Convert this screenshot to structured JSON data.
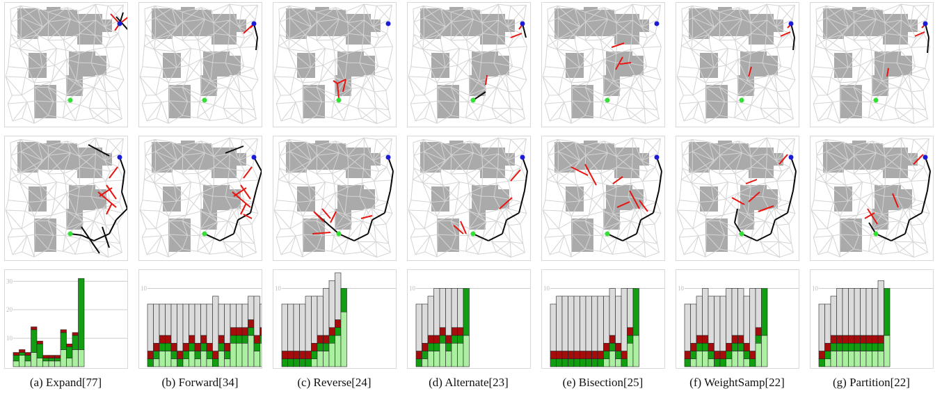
{
  "panels": [
    {
      "id": "a",
      "caption": "(a) Expand[77]",
      "hist": {
        "ymax": 33,
        "ticks": [
          10,
          20,
          30
        ],
        "bars": [
          [
            2,
            2,
            1
          ],
          [
            4,
            1,
            1
          ],
          [
            2,
            2,
            1
          ],
          [
            5,
            8,
            1
          ],
          [
            3,
            5,
            1
          ],
          [
            2,
            1,
            1
          ],
          [
            2,
            1,
            1
          ],
          [
            2,
            1,
            1
          ],
          [
            6,
            6,
            1
          ],
          [
            3,
            4,
            1
          ],
          [
            6,
            5,
            1
          ],
          [
            6,
            25,
            0
          ]
        ]
      }
    },
    {
      "id": "b",
      "caption": "(b) Forward[34]",
      "hist": {
        "ymax": 12,
        "ticks": [
          10
        ],
        "bars": [
          [
            0,
            1,
            1,
            6
          ],
          [
            1,
            1,
            1,
            5
          ],
          [
            2,
            1,
            1,
            4
          ],
          [
            2,
            1,
            1,
            4
          ],
          [
            1,
            1,
            1,
            5
          ],
          [
            0,
            1,
            1,
            6
          ],
          [
            1,
            1,
            1,
            5
          ],
          [
            2,
            1,
            1,
            4
          ],
          [
            1,
            1,
            1,
            5
          ],
          [
            2,
            1,
            1,
            4
          ],
          [
            1,
            1,
            1,
            5
          ],
          [
            0,
            1,
            1,
            7
          ],
          [
            2,
            1,
            1,
            4
          ],
          [
            1,
            1,
            1,
            5
          ],
          [
            3,
            1,
            1,
            3
          ],
          [
            3,
            1,
            1,
            3
          ],
          [
            3,
            1,
            1,
            3
          ],
          [
            4,
            1,
            1,
            3
          ],
          [
            2,
            1,
            1,
            5
          ],
          [
            3,
            1,
            1,
            3
          ],
          [
            3,
            1,
            1,
            3
          ],
          [
            4,
            1,
            1,
            5
          ],
          [
            7,
            3,
            0,
            0
          ]
        ]
      }
    },
    {
      "id": "c",
      "caption": "(c) Reverse[24]",
      "hist": {
        "ymax": 12,
        "ticks": [
          10
        ],
        "bars": [
          [
            0,
            1,
            1,
            6
          ],
          [
            0,
            1,
            1,
            6
          ],
          [
            0,
            1,
            1,
            6
          ],
          [
            0,
            1,
            1,
            6
          ],
          [
            0,
            1,
            1,
            7
          ],
          [
            1,
            1,
            1,
            6
          ],
          [
            2,
            1,
            1,
            5
          ],
          [
            2,
            1,
            1,
            6
          ],
          [
            3,
            1,
            1,
            6
          ],
          [
            4,
            1,
            1,
            6
          ],
          [
            7,
            3,
            0,
            0
          ]
        ]
      }
    },
    {
      "id": "d",
      "caption": "(d) Alternate[23]",
      "hist": {
        "ymax": 12,
        "ticks": [
          10
        ],
        "bars": [
          [
            0,
            1,
            1,
            6
          ],
          [
            1,
            1,
            1,
            5
          ],
          [
            2,
            1,
            1,
            5
          ],
          [
            2,
            1,
            1,
            6
          ],
          [
            3,
            1,
            1,
            5
          ],
          [
            2,
            1,
            1,
            6
          ],
          [
            3,
            1,
            1,
            5
          ],
          [
            3,
            1,
            1,
            5
          ],
          [
            4,
            6,
            0,
            0
          ]
        ]
      }
    },
    {
      "id": "e",
      "caption": "(e) Bisection[25]",
      "hist": {
        "ymax": 12,
        "ticks": [
          10
        ],
        "bars": [
          [
            0,
            1,
            1,
            6
          ],
          [
            0,
            1,
            1,
            7
          ],
          [
            0,
            1,
            1,
            7
          ],
          [
            0,
            1,
            1,
            7
          ],
          [
            0,
            1,
            1,
            7
          ],
          [
            0,
            1,
            1,
            7
          ],
          [
            0,
            1,
            1,
            7
          ],
          [
            0,
            1,
            1,
            7
          ],
          [
            0,
            1,
            1,
            7
          ],
          [
            1,
            1,
            1,
            6
          ],
          [
            2,
            1,
            1,
            6
          ],
          [
            1,
            1,
            1,
            6
          ],
          [
            0,
            1,
            1,
            8
          ],
          [
            3,
            1,
            1,
            5
          ],
          [
            4,
            6,
            0,
            0
          ]
        ]
      }
    },
    {
      "id": "f",
      "caption": "(f) WeightSamp[22]",
      "hist": {
        "ymax": 12,
        "ticks": [
          10
        ],
        "bars": [
          [
            0,
            1,
            1,
            6
          ],
          [
            1,
            1,
            1,
            5
          ],
          [
            2,
            1,
            1,
            5
          ],
          [
            2,
            1,
            1,
            6
          ],
          [
            1,
            1,
            1,
            6
          ],
          [
            0,
            1,
            1,
            7
          ],
          [
            0,
            1,
            1,
            7
          ],
          [
            1,
            1,
            1,
            7
          ],
          [
            2,
            1,
            1,
            6
          ],
          [
            2,
            1,
            1,
            6
          ],
          [
            1,
            1,
            1,
            6
          ],
          [
            0,
            1,
            1,
            8
          ],
          [
            3,
            1,
            1,
            5
          ],
          [
            4,
            6,
            0,
            0
          ]
        ]
      }
    },
    {
      "id": "g",
      "caption": "(g) Partition[22]",
      "hist": {
        "ymax": 12,
        "ticks": [
          10
        ],
        "bars": [
          [
            0,
            1,
            1,
            6
          ],
          [
            1,
            1,
            1,
            5
          ],
          [
            2,
            1,
            1,
            5
          ],
          [
            2,
            1,
            1,
            6
          ],
          [
            2,
            1,
            1,
            6
          ],
          [
            2,
            1,
            1,
            6
          ],
          [
            2,
            1,
            1,
            6
          ],
          [
            2,
            1,
            1,
            6
          ],
          [
            2,
            1,
            1,
            6
          ],
          [
            2,
            1,
            1,
            6
          ],
          [
            2,
            1,
            1,
            7
          ],
          [
            4,
            6,
            0,
            0
          ]
        ]
      }
    }
  ],
  "colors": {
    "obstacle": "#aaaaaa",
    "roadmap": "#d4d4d4",
    "invalid_edge": "#e8140f",
    "path_edge": "#0a0a0a",
    "goal": "#1c1cd8",
    "start": "#35e035",
    "hist_light": "#aaf0a0",
    "hist_green": "#119e11",
    "hist_red": "#a50d0d",
    "hist_gray": "#dcdcdc"
  }
}
